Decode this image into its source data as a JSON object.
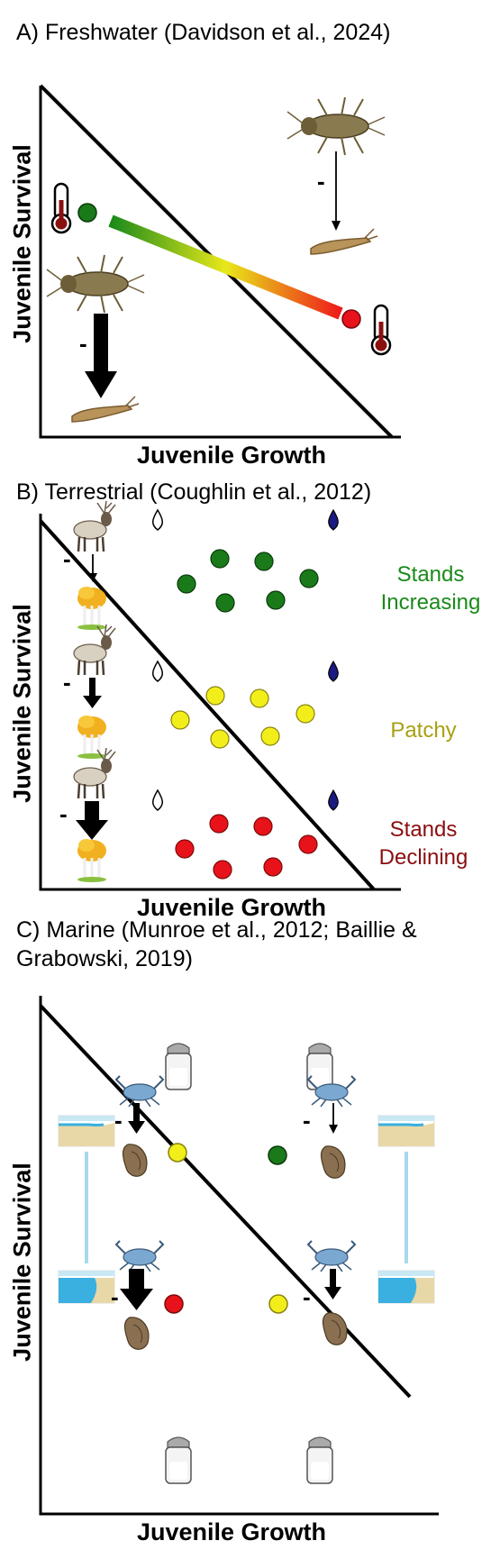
{
  "panels": [
    {
      "title": "A) Freshwater (Davidson et al., 2024)",
      "xlabel": "Juvenile Growth",
      "ylabel": "Juvenile Survival",
      "effect_marks": [
        "-",
        "-"
      ]
    },
    {
      "title": "B) Terrestrial (Coughlin et al., 2012)",
      "xlabel": "Juvenile Growth",
      "ylabel": "Juvenile Survival",
      "effect_marks": [
        "-",
        "-",
        "-"
      ],
      "status_labels": [
        {
          "text": "Stands\nIncreasing",
          "color": "#1a8a1a"
        },
        {
          "text": "Patchy",
          "color": "#a8a012"
        },
        {
          "text": "Stands\nDeclining",
          "color": "#8a0e0e"
        }
      ]
    },
    {
      "title_line1": "C) Marine (Munroe et al., 2012; Baillie &",
      "title_line2": "Grabowski, 2019)",
      "xlabel": "Juvenile Growth",
      "ylabel": "Juvenile Survival",
      "effect_marks": [
        "-",
        "-",
        "-",
        "-"
      ]
    }
  ],
  "colors": {
    "green": "#1a7a1a",
    "yellow": "#f2ee1a",
    "red": "#e8121a",
    "navy": "#1a1a80",
    "water": "#3ab0e0",
    "sand": "#e8d8a8"
  },
  "icons": [
    "thermometer-icon",
    "mayfly-nymph-icon",
    "elk-icon",
    "aspen-tree-icon",
    "water-drop-icon",
    "salt-shaker-icon",
    "blue-crab-icon",
    "oyster-icon",
    "shoreline-icon"
  ]
}
